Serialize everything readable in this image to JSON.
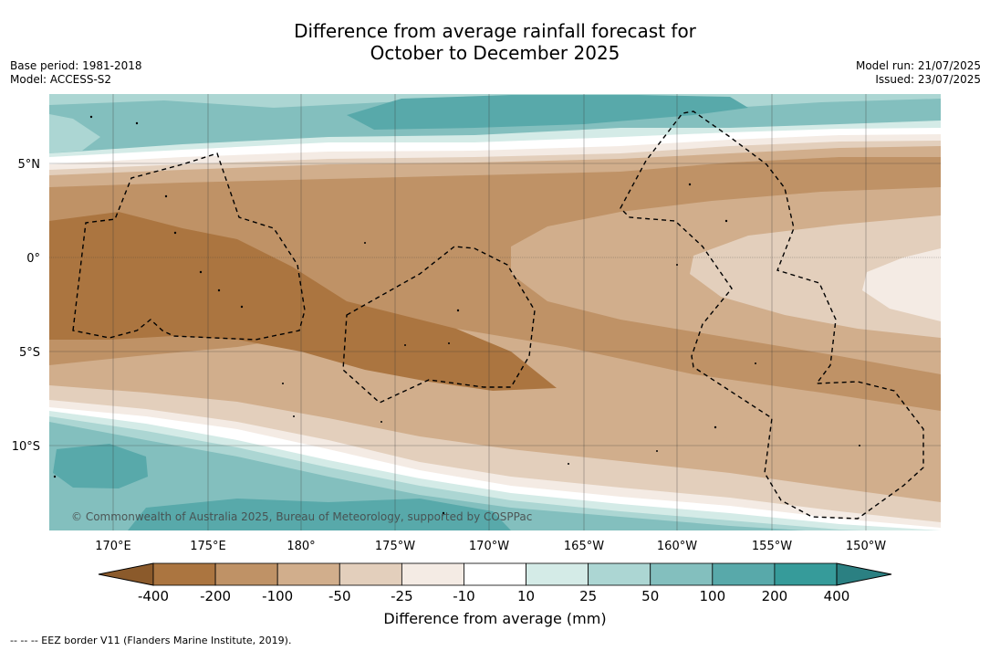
{
  "title_line1": "Difference from average rainfall forecast for",
  "title_line2": "October to December 2025",
  "meta_left": {
    "base_period": "Base period: 1981-2018",
    "model": "Model: ACCESS-S2"
  },
  "meta_right": {
    "model_run": "Model run: 21/07/2025",
    "issued": "Issued: 23/07/2025"
  },
  "map": {
    "lat_labels": [
      "5°N",
      "0°",
      "5°S",
      "10°S"
    ],
    "lon_labels": [
      "170°E",
      "175°E",
      "180°",
      "175°W",
      "170°W",
      "165°W",
      "160°W",
      "155°W",
      "150°W"
    ],
    "copyright": "© Commonwealth of Australia 2025, Bureau of Meteorology, supported by COSPPac",
    "border_style": "dashed"
  },
  "colorbar": {
    "ticks": [
      "-400",
      "-200",
      "-100",
      "-50",
      "-25",
      "-10",
      "10",
      "25",
      "50",
      "100",
      "200",
      "400"
    ],
    "colors": [
      "#8b5a2b",
      "#ab7540",
      "#bf9266",
      "#d1ae8c",
      "#e3cfbc",
      "#f4ebe4",
      "#ffffff",
      "#d4ebe7",
      "#acd6d3",
      "#83bfbe",
      "#58a9aa",
      "#369b9a",
      "#2b8082"
    ],
    "label": "Difference from average (mm)"
  },
  "footnote": "--  --  -- EEZ border V11 (Flanders Marine Institute, 2019)."
}
